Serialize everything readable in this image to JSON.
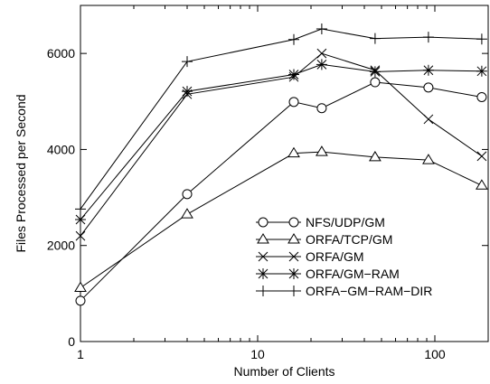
{
  "chart_data": {
    "type": "line",
    "title": "",
    "xlabel": "Number of Clients",
    "ylabel": "Files Processed per Second",
    "x_scale": "log",
    "xlim": [
      1,
      200
    ],
    "ylim": [
      0,
      7000
    ],
    "x_ticks": [
      {
        "value": 1,
        "label": "1"
      },
      {
        "value": 10,
        "label": "10"
      },
      {
        "value": 100,
        "label": "100"
      }
    ],
    "y_ticks": [
      {
        "value": 0,
        "label": "0"
      },
      {
        "value": 2000,
        "label": "2000"
      },
      {
        "value": 4000,
        "label": "4000"
      },
      {
        "value": 6000,
        "label": "6000"
      }
    ],
    "grid": false,
    "legend_position": "center-right",
    "x": [
      1,
      4,
      16,
      23,
      46,
      92,
      184
    ],
    "series": [
      {
        "name": "NFS/UDP/GM",
        "marker": "circle",
        "values": [
          850,
          3070,
          4990,
          4860,
          5400,
          5290,
          5090
        ]
      },
      {
        "name": "ORFA/TCP/GM",
        "marker": "triangle",
        "values": [
          1120,
          2650,
          3920,
          3950,
          3840,
          3780,
          3250
        ]
      },
      {
        "name": "ORFA/GM",
        "marker": "x",
        "values": [
          2200,
          5150,
          5510,
          6000,
          5650,
          4630,
          3860
        ]
      },
      {
        "name": "ORFA/GM−RAM",
        "marker": "asterisk",
        "values": [
          2540,
          5210,
          5560,
          5770,
          5620,
          5650,
          5630
        ]
      },
      {
        "name": "ORFA−GM−RAM−DIR",
        "marker": "plus",
        "values": [
          2760,
          5830,
          6290,
          6510,
          6310,
          6340,
          6300
        ]
      }
    ]
  }
}
